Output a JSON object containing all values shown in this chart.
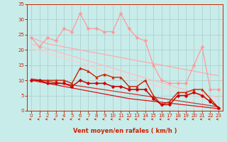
{
  "xlabel": "Vent moyen/en rafales ( km/h )",
  "xlim": [
    -0.5,
    23.5
  ],
  "ylim": [
    0,
    35
  ],
  "yticks": [
    0,
    5,
    10,
    15,
    20,
    25,
    30,
    35
  ],
  "xticks": [
    0,
    1,
    2,
    3,
    4,
    5,
    6,
    7,
    8,
    9,
    10,
    11,
    12,
    13,
    14,
    15,
    16,
    17,
    18,
    19,
    20,
    21,
    22,
    23
  ],
  "bg_color": "#c8ecea",
  "grid_color": "#aacccc",
  "series": [
    {
      "y": [
        24,
        21,
        24,
        23,
        27,
        26,
        32,
        27,
        27,
        26,
        26,
        32,
        27,
        24,
        23,
        15,
        10,
        9,
        9,
        9,
        15,
        21,
        7,
        7
      ],
      "color": "#ff9999",
      "lw": 0.9,
      "marker": "D",
      "ms": 2.5,
      "zorder": 3
    },
    {
      "y": [
        24.0,
        23.0,
        22.0,
        21.5,
        21.0,
        20.5,
        20.0,
        19.5,
        19.0,
        18.5,
        18.0,
        17.5,
        17.0,
        16.5,
        16.0,
        15.5,
        15.0,
        14.5,
        14.0,
        13.5,
        13.0,
        12.5,
        12.0,
        11.5
      ],
      "color": "#ffaaaa",
      "lw": 0.9,
      "marker": null,
      "ms": 0,
      "zorder": 2
    },
    {
      "y": [
        22.0,
        21.2,
        20.4,
        19.6,
        18.8,
        18.0,
        17.2,
        16.4,
        15.6,
        14.8,
        14.0,
        13.2,
        12.4,
        11.6,
        10.8,
        10.0,
        9.2,
        8.4,
        7.6,
        6.8,
        6.0,
        5.5,
        5.0,
        4.5
      ],
      "color": "#ffbbbb",
      "lw": 0.9,
      "marker": null,
      "ms": 0,
      "zorder": 2
    },
    {
      "y": [
        20.5,
        19.7,
        18.9,
        18.1,
        17.3,
        16.5,
        15.7,
        14.9,
        14.1,
        13.3,
        12.5,
        11.7,
        10.9,
        10.1,
        9.3,
        8.5,
        7.7,
        6.9,
        6.1,
        5.3,
        4.5,
        4.0,
        3.5,
        3.0
      ],
      "color": "#ffcccc",
      "lw": 0.8,
      "marker": null,
      "ms": 0,
      "zorder": 2
    },
    {
      "y": [
        10,
        10,
        10,
        10,
        10,
        9,
        14,
        13,
        11,
        12,
        11,
        11,
        8,
        8,
        10,
        5,
        2,
        3,
        6,
        6,
        7,
        7,
        4,
        1
      ],
      "color": "#cc2200",
      "lw": 1.0,
      "marker": "^",
      "ms": 2.5,
      "zorder": 4
    },
    {
      "y": [
        10.5,
        10.1,
        9.7,
        9.3,
        8.9,
        8.5,
        8.1,
        7.7,
        7.3,
        6.9,
        6.5,
        6.1,
        5.7,
        5.3,
        4.9,
        4.5,
        4.1,
        3.7,
        3.3,
        2.9,
        2.5,
        2.1,
        1.7,
        1.3
      ],
      "color": "#cc3333",
      "lw": 0.9,
      "marker": null,
      "ms": 0,
      "zorder": 3
    },
    {
      "y": [
        10.0,
        9.5,
        9.0,
        8.5,
        8.0,
        7.5,
        7.0,
        6.5,
        6.0,
        5.5,
        5.0,
        4.5,
        4.0,
        3.7,
        3.4,
        3.1,
        2.8,
        2.5,
        2.2,
        1.9,
        1.6,
        1.3,
        1.0,
        0.7
      ],
      "color": "#dd1111",
      "lw": 0.9,
      "marker": null,
      "ms": 0,
      "zorder": 3
    },
    {
      "y": [
        10,
        10,
        9,
        9,
        9,
        8,
        10,
        9,
        9,
        9,
        8,
        8,
        7,
        7,
        7,
        4,
        2,
        2,
        5,
        5,
        6,
        5,
        3,
        1
      ],
      "color": "#cc0000",
      "lw": 1.1,
      "marker": "D",
      "ms": 2.5,
      "zorder": 4
    }
  ],
  "wind_arrows_color": "#cc2200",
  "tick_color": "#cc2200",
  "tick_labelsize": 5,
  "xlabel_fontsize": 6
}
